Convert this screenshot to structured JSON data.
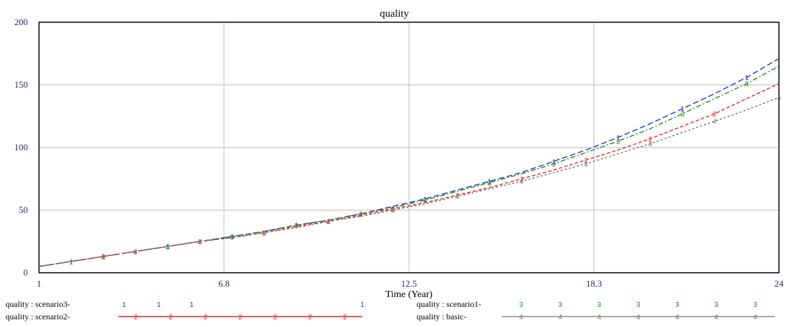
{
  "chart_data": {
    "type": "line",
    "title": "quality",
    "xlabel": "Time (Year)",
    "ylabel": "",
    "xlim": [
      1,
      24
    ],
    "ylim": [
      0,
      200
    ],
    "x_ticks": [
      "1",
      "6.8",
      "12.5",
      "18.3",
      "24"
    ],
    "x_tick_values": [
      1,
      6.75,
      12.5,
      18.25,
      24
    ],
    "y_ticks": [
      "0",
      "50",
      "100",
      "150",
      "200"
    ],
    "y_tick_values": [
      0,
      50,
      100,
      150,
      200
    ],
    "grid": true,
    "legend_position": "bottom",
    "series": [
      {
        "name": "quality : scenario3",
        "legend_label": "quality : scenario3-",
        "marker": "1",
        "color": "#1f2fd6",
        "dash": "8,4",
        "x": [
          1,
          2,
          3,
          4,
          5,
          6,
          7,
          8,
          9,
          10,
          11,
          12,
          13,
          14,
          15,
          16,
          17,
          18,
          19,
          20,
          21,
          22,
          23,
          24
        ],
        "y": [
          5,
          9,
          13,
          17,
          21,
          25,
          29,
          33,
          38,
          42,
          47,
          53,
          59,
          66,
          73,
          80,
          89,
          98,
          108,
          119,
          131,
          143,
          156,
          171
        ],
        "markers_x": [
          2,
          3,
          5,
          7,
          9,
          11,
          13,
          15,
          17,
          19,
          21,
          23
        ]
      },
      {
        "name": "quality : scenario1",
        "legend_label": "quality : scenario1-",
        "marker": "3",
        "color": "#1a8a1a",
        "dash": "7,3,2,3",
        "x": [
          1,
          2,
          3,
          4,
          5,
          6,
          7,
          8,
          9,
          10,
          11,
          12,
          13,
          14,
          15,
          16,
          17,
          18,
          19,
          20,
          21,
          22,
          23,
          24
        ],
        "y": [
          5,
          9,
          13,
          17,
          21,
          25,
          29,
          33,
          38,
          42,
          47,
          52,
          58,
          65,
          72,
          79,
          87,
          96,
          105,
          115,
          127,
          139,
          151,
          165
        ],
        "markers_x": [
          3,
          5,
          7,
          9,
          11,
          13,
          15,
          17,
          19,
          21,
          23
        ]
      },
      {
        "name": "quality : scenario2",
        "legend_label": "quality : scenario2-",
        "marker": "2",
        "color": "#e82020",
        "dash": "5,3",
        "x": [
          1,
          2,
          3,
          4,
          5,
          6,
          7,
          8,
          9,
          10,
          11,
          12,
          13,
          14,
          15,
          16,
          17,
          18,
          19,
          20,
          21,
          22,
          23,
          24
        ],
        "y": [
          5,
          9,
          13,
          17,
          21,
          25,
          28,
          32,
          37,
          41,
          46,
          51,
          56,
          62,
          68,
          75,
          82,
          90,
          98,
          107,
          117,
          127,
          139,
          151
        ],
        "markers_x": [
          3,
          4,
          6,
          8,
          10,
          12,
          14,
          16,
          18,
          20,
          22
        ]
      },
      {
        "name": "quality : basic",
        "legend_label": "quality : basic-",
        "marker": "4",
        "color": "#707070",
        "dash": "3,3",
        "x": [
          1,
          2,
          3,
          4,
          5,
          6,
          7,
          8,
          9,
          10,
          11,
          12,
          13,
          14,
          15,
          16,
          17,
          18,
          19,
          20,
          21,
          22,
          23,
          24
        ],
        "y": [
          5,
          9,
          13,
          17,
          21,
          25,
          28,
          32,
          36,
          41,
          45,
          50,
          55,
          61,
          67,
          73,
          80,
          87,
          95,
          103,
          112,
          121,
          130,
          140
        ],
        "markers_x": [
          4,
          6,
          8,
          10,
          12,
          14,
          16,
          18,
          20,
          22,
          24
        ]
      }
    ]
  }
}
